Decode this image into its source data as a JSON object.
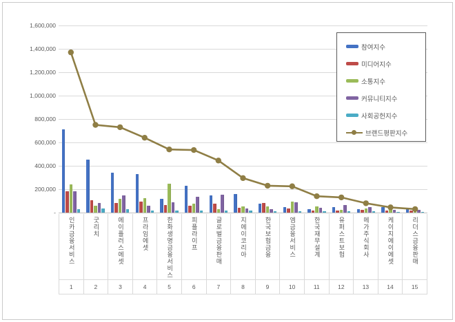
{
  "chart_data": {
    "type": "bar",
    "title": "",
    "xlabel": "",
    "ylabel": "",
    "categories": [
      "인카금융서비스",
      "굿리치",
      "에이플러스에셋",
      "프라임에셋",
      "한화생명금융서비스",
      "피플라이프",
      "글로벌금융판매",
      "지에이코리아",
      "한국보험금융",
      "엠금융서비스",
      "한국재무설계",
      "유퍼스트보험",
      "메가주식회사",
      "케이지에이에셋",
      "리더스금융판매"
    ],
    "category_numbers": [
      "1",
      "2",
      "3",
      "4",
      "5",
      "6",
      "7",
      "8",
      "9",
      "10",
      "11",
      "12",
      "13",
      "14",
      "15"
    ],
    "series": [
      {
        "name": "참여지수",
        "type": "bar",
        "color": "#4472c4",
        "values": [
          710000,
          455000,
          340000,
          330000,
          120000,
          230000,
          145000,
          160000,
          75000,
          50000,
          30000,
          45000,
          30000,
          45000,
          40000
        ]
      },
      {
        "name": "미디어지수",
        "type": "bar",
        "color": "#be4b48",
        "values": [
          185000,
          105000,
          85000,
          95000,
          65000,
          60000,
          75000,
          40000,
          80000,
          35000,
          20000,
          15000,
          25000,
          20000,
          15000
        ]
      },
      {
        "name": "소통지수",
        "type": "bar",
        "color": "#9bbb59",
        "values": [
          240000,
          60000,
          120000,
          125000,
          250000,
          75000,
          30000,
          55000,
          55000,
          95000,
          55000,
          25000,
          35000,
          30000,
          20000
        ]
      },
      {
        "name": "커뮤니티지수",
        "type": "bar",
        "color": "#8064a2",
        "values": [
          180000,
          85000,
          145000,
          60000,
          90000,
          135000,
          155000,
          35000,
          30000,
          90000,
          40000,
          65000,
          45000,
          25000,
          25000
        ]
      },
      {
        "name": "사회공헌지수",
        "type": "bar",
        "color": "#4bacc6",
        "values": [
          30000,
          35000,
          30000,
          20000,
          20000,
          20000,
          15000,
          15000,
          10000,
          10000,
          10000,
          10000,
          10000,
          5000,
          5000
        ]
      },
      {
        "name": "브랜드평판지수",
        "type": "line",
        "color": "#8f7e45",
        "values": [
          1370000,
          750000,
          730000,
          640000,
          540000,
          535000,
          445000,
          295000,
          230000,
          225000,
          140000,
          130000,
          80000,
          45000,
          30000
        ]
      }
    ],
    "ylim": [
      0,
      1600000
    ],
    "y_tick_step": 200000,
    "y_tick_labels": [
      "-",
      "200,000",
      "400,000",
      "600,000",
      "800,000",
      "1,000,000",
      "1,200,000",
      "1,400,000",
      "1,600,000"
    ],
    "grid": true,
    "legend_position": "upper-right"
  },
  "colors": {
    "background": "#ffffff",
    "frame_border": "#c9c9c9",
    "grid": "#d9d9d9",
    "axis": "#bfbfbf",
    "label": "#595959",
    "legend_border": "#595959",
    "table_border": "#d9d9d9"
  }
}
